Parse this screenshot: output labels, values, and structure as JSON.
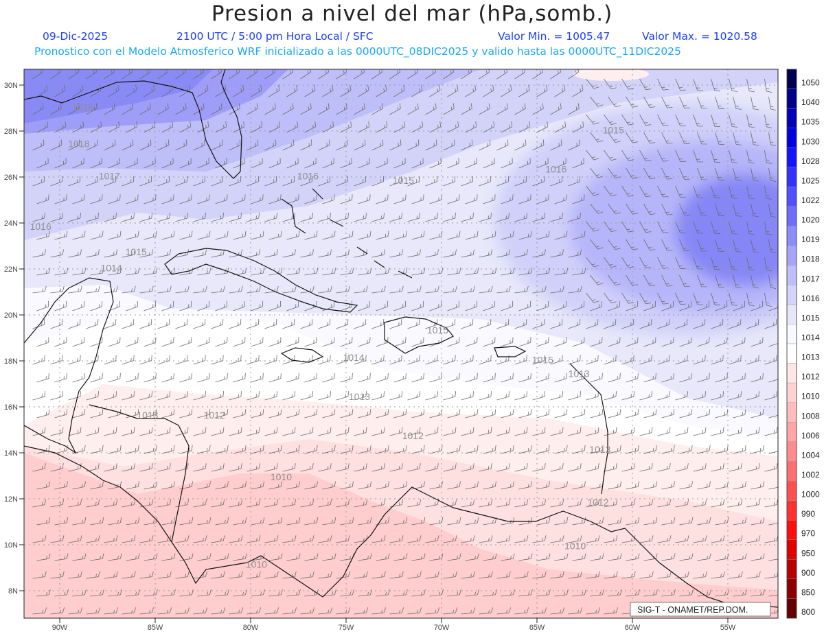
{
  "header": {
    "title": "Presion a nivel del mar (hPa,somb.)",
    "date": "09-Dic-2025",
    "time_label": "2100 UTC / 5:00 pm Hora Local / SFC",
    "min_label": "Valor Min. = 1005.47",
    "max_label": "Valor Max. = 1020.58",
    "forecast_label": "Pronostico con el Modelo Atmosferico WRF inicializado a las 0000UTC_08DIC2025 y valido hasta las  0000UTC_11DIC2025"
  },
  "map": {
    "lon_ticks": [
      "90W",
      "85W",
      "80W",
      "75W",
      "70W",
      "65W",
      "60W",
      "55W"
    ],
    "lat_ticks": [
      "30N",
      "28N",
      "26N",
      "24N",
      "22N",
      "20N",
      "18N",
      "16N",
      "14N",
      "12N",
      "10N",
      "8N"
    ],
    "contour_labels": [
      {
        "text": "1018",
        "lon": -88.8,
        "lat": 28.9
      },
      {
        "text": "1018",
        "lon": -89.0,
        "lat": 27.3
      },
      {
        "text": "1017",
        "lon": -87.4,
        "lat": 25.9
      },
      {
        "text": "1016",
        "lon": -91.0,
        "lat": 23.7
      },
      {
        "text": "1016",
        "lon": -77.0,
        "lat": 25.9
      },
      {
        "text": "1015",
        "lon": -72.0,
        "lat": 25.7
      },
      {
        "text": "1015",
        "lon": -86.0,
        "lat": 22.6
      },
      {
        "text": "1014",
        "lon": -87.3,
        "lat": 21.9
      },
      {
        "text": "1016",
        "lon": -64.0,
        "lat": 26.2
      },
      {
        "text": "1015",
        "lon": -61.0,
        "lat": 27.9
      },
      {
        "text": "1015",
        "lon": -70.2,
        "lat": 19.2
      },
      {
        "text": "1014",
        "lon": -74.6,
        "lat": 18.0
      },
      {
        "text": "1015",
        "lon": -64.7,
        "lat": 17.9
      },
      {
        "text": "1013",
        "lon": -62.8,
        "lat": 17.3
      },
      {
        "text": "1013",
        "lon": -74.3,
        "lat": 16.3
      },
      {
        "text": "1013",
        "lon": -85.4,
        "lat": 15.5
      },
      {
        "text": "1012",
        "lon": -81.9,
        "lat": 15.5
      },
      {
        "text": "1012",
        "lon": -71.5,
        "lat": 14.6
      },
      {
        "text": "1013",
        "lon": -61.7,
        "lat": 14.0
      },
      {
        "text": "1010",
        "lon": -78.4,
        "lat": 12.8
      },
      {
        "text": "1012",
        "lon": -61.8,
        "lat": 11.7
      },
      {
        "text": "1010",
        "lon": -63.0,
        "lat": 9.8
      },
      {
        "text": "1010",
        "lon": -79.7,
        "lat": 9.0
      }
    ],
    "credit": "SIG-T - ONAMET/REP.DOM."
  },
  "legend": {
    "levels": [
      "1050",
      "1040",
      "1035",
      "1030",
      "1028",
      "1025",
      "1022",
      "1020",
      "1019",
      "1018",
      "1017",
      "1016",
      "1015",
      "1014",
      "1013",
      "1012",
      "1010",
      "1008",
      "1006",
      "1004",
      "1002",
      "1000",
      "990",
      "970",
      "950",
      "900",
      "850",
      "800"
    ],
    "colors": [
      "#000050",
      "#00008c",
      "#0000b8",
      "#0000e0",
      "#1414ff",
      "#3232ff",
      "#5050ff",
      "#6e6efa",
      "#8c8cfa",
      "#a5a5fa",
      "#bebefa",
      "#d4d4fa",
      "#e6e6fa",
      "#f8f8ff",
      "#ffffff",
      "#ffe6e6",
      "#ffd2d2",
      "#ffbcbc",
      "#ffa5a5",
      "#ff8c8c",
      "#ff6e6e",
      "#ff5050",
      "#ff3030",
      "#ff0e0e",
      "#e00000",
      "#b80000",
      "#8c0000",
      "#640000"
    ]
  }
}
